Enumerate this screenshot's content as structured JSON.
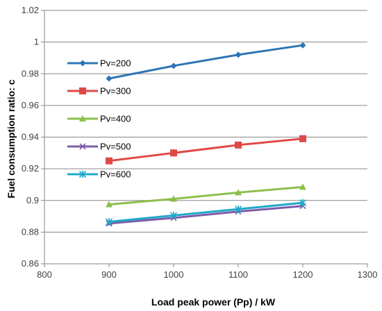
{
  "chart_data": {
    "type": "line",
    "xlabel": "Load peak power (Pp) / kW",
    "ylabel": "Fuel consumption ratio: c",
    "xlim": [
      800,
      1300
    ],
    "ylim": [
      0.86,
      1.02
    ],
    "xticks": [
      800,
      900,
      1000,
      1100,
      1200,
      1300
    ],
    "yticks": [
      0.86,
      0.88,
      0.9,
      0.92,
      0.94,
      0.96,
      0.98,
      1,
      1.02
    ],
    "xtick_labels": [
      "800",
      "900",
      "1000",
      "1100",
      "1200",
      "1300"
    ],
    "ytick_labels": [
      "0.86",
      "0.88",
      "0.9",
      "0.92",
      "0.94",
      "0.96",
      "0.98",
      "1",
      "1.02"
    ],
    "grid": {
      "horizontal": true,
      "vertical": false
    },
    "legend_position": "left",
    "x": [
      900,
      1000,
      1100,
      1200
    ],
    "series": [
      {
        "name": "Pv=200",
        "values": [
          0.977,
          0.985,
          0.992,
          0.998
        ],
        "color": "#2E75B6",
        "marker": "diamond"
      },
      {
        "name": "Pv=300",
        "values": [
          0.925,
          0.93,
          0.935,
          0.939
        ],
        "color": "#E04848",
        "marker": "square"
      },
      {
        "name": "Pv=400",
        "values": [
          0.8975,
          0.901,
          0.905,
          0.9085
        ],
        "color": "#8CBF4A",
        "marker": "triangle"
      },
      {
        "name": "Pv=500",
        "values": [
          0.8855,
          0.889,
          0.893,
          0.8965
        ],
        "color": "#7F5AA8",
        "marker": "x"
      },
      {
        "name": "Pv=600",
        "values": [
          0.8865,
          0.8905,
          0.8945,
          0.8985
        ],
        "color": "#1FA9C9",
        "marker": "asterisk"
      }
    ]
  }
}
